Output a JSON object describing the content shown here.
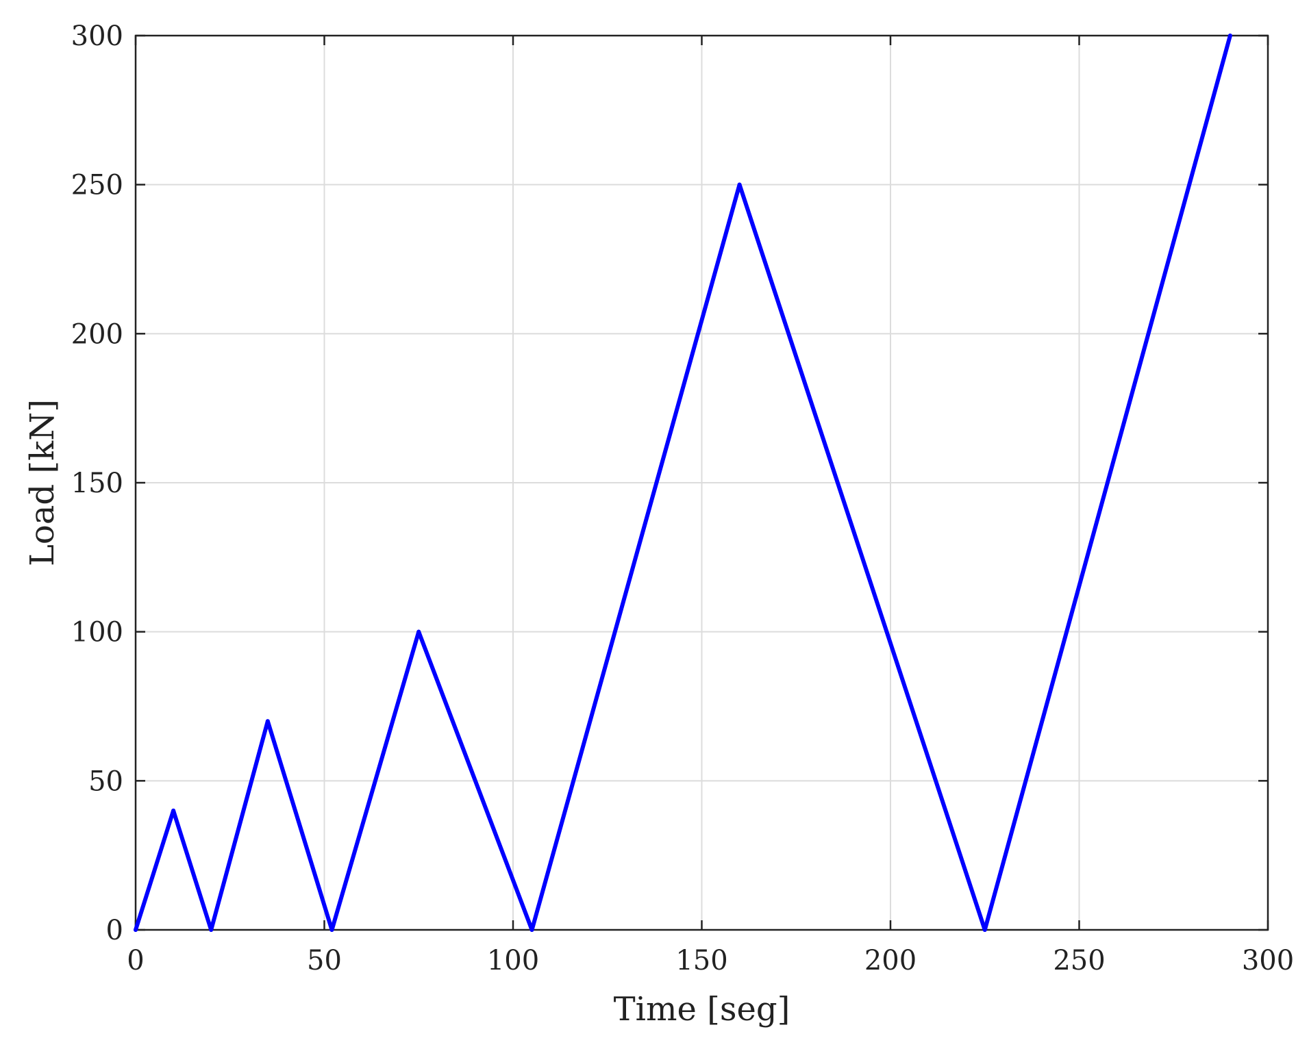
{
  "chart_data": {
    "type": "line",
    "title": "",
    "xlabel": "Time [seg]",
    "ylabel": "Load [kN]",
    "xlim": [
      0,
      300
    ],
    "ylim": [
      0,
      300
    ],
    "xticks": [
      0,
      50,
      100,
      150,
      200,
      250,
      300
    ],
    "yticks": [
      0,
      50,
      100,
      150,
      200,
      250,
      300
    ],
    "xtick_labels": [
      "0",
      "50",
      "100",
      "150",
      "200",
      "250",
      "300"
    ],
    "ytick_labels": [
      "0",
      "50",
      "100",
      "150",
      "200",
      "250",
      "300"
    ],
    "grid": true,
    "legend": "none",
    "series": [
      {
        "color": "#0000ff",
        "x": [
          0,
          10,
          20,
          35,
          52,
          75,
          105,
          160,
          225,
          290
        ],
        "y": [
          0,
          40,
          0,
          70,
          0,
          100,
          0,
          250,
          0,
          300
        ]
      }
    ]
  },
  "colors": {
    "axis": "#222222",
    "grid": "#dcdcdc",
    "background": "#ffffff"
  }
}
